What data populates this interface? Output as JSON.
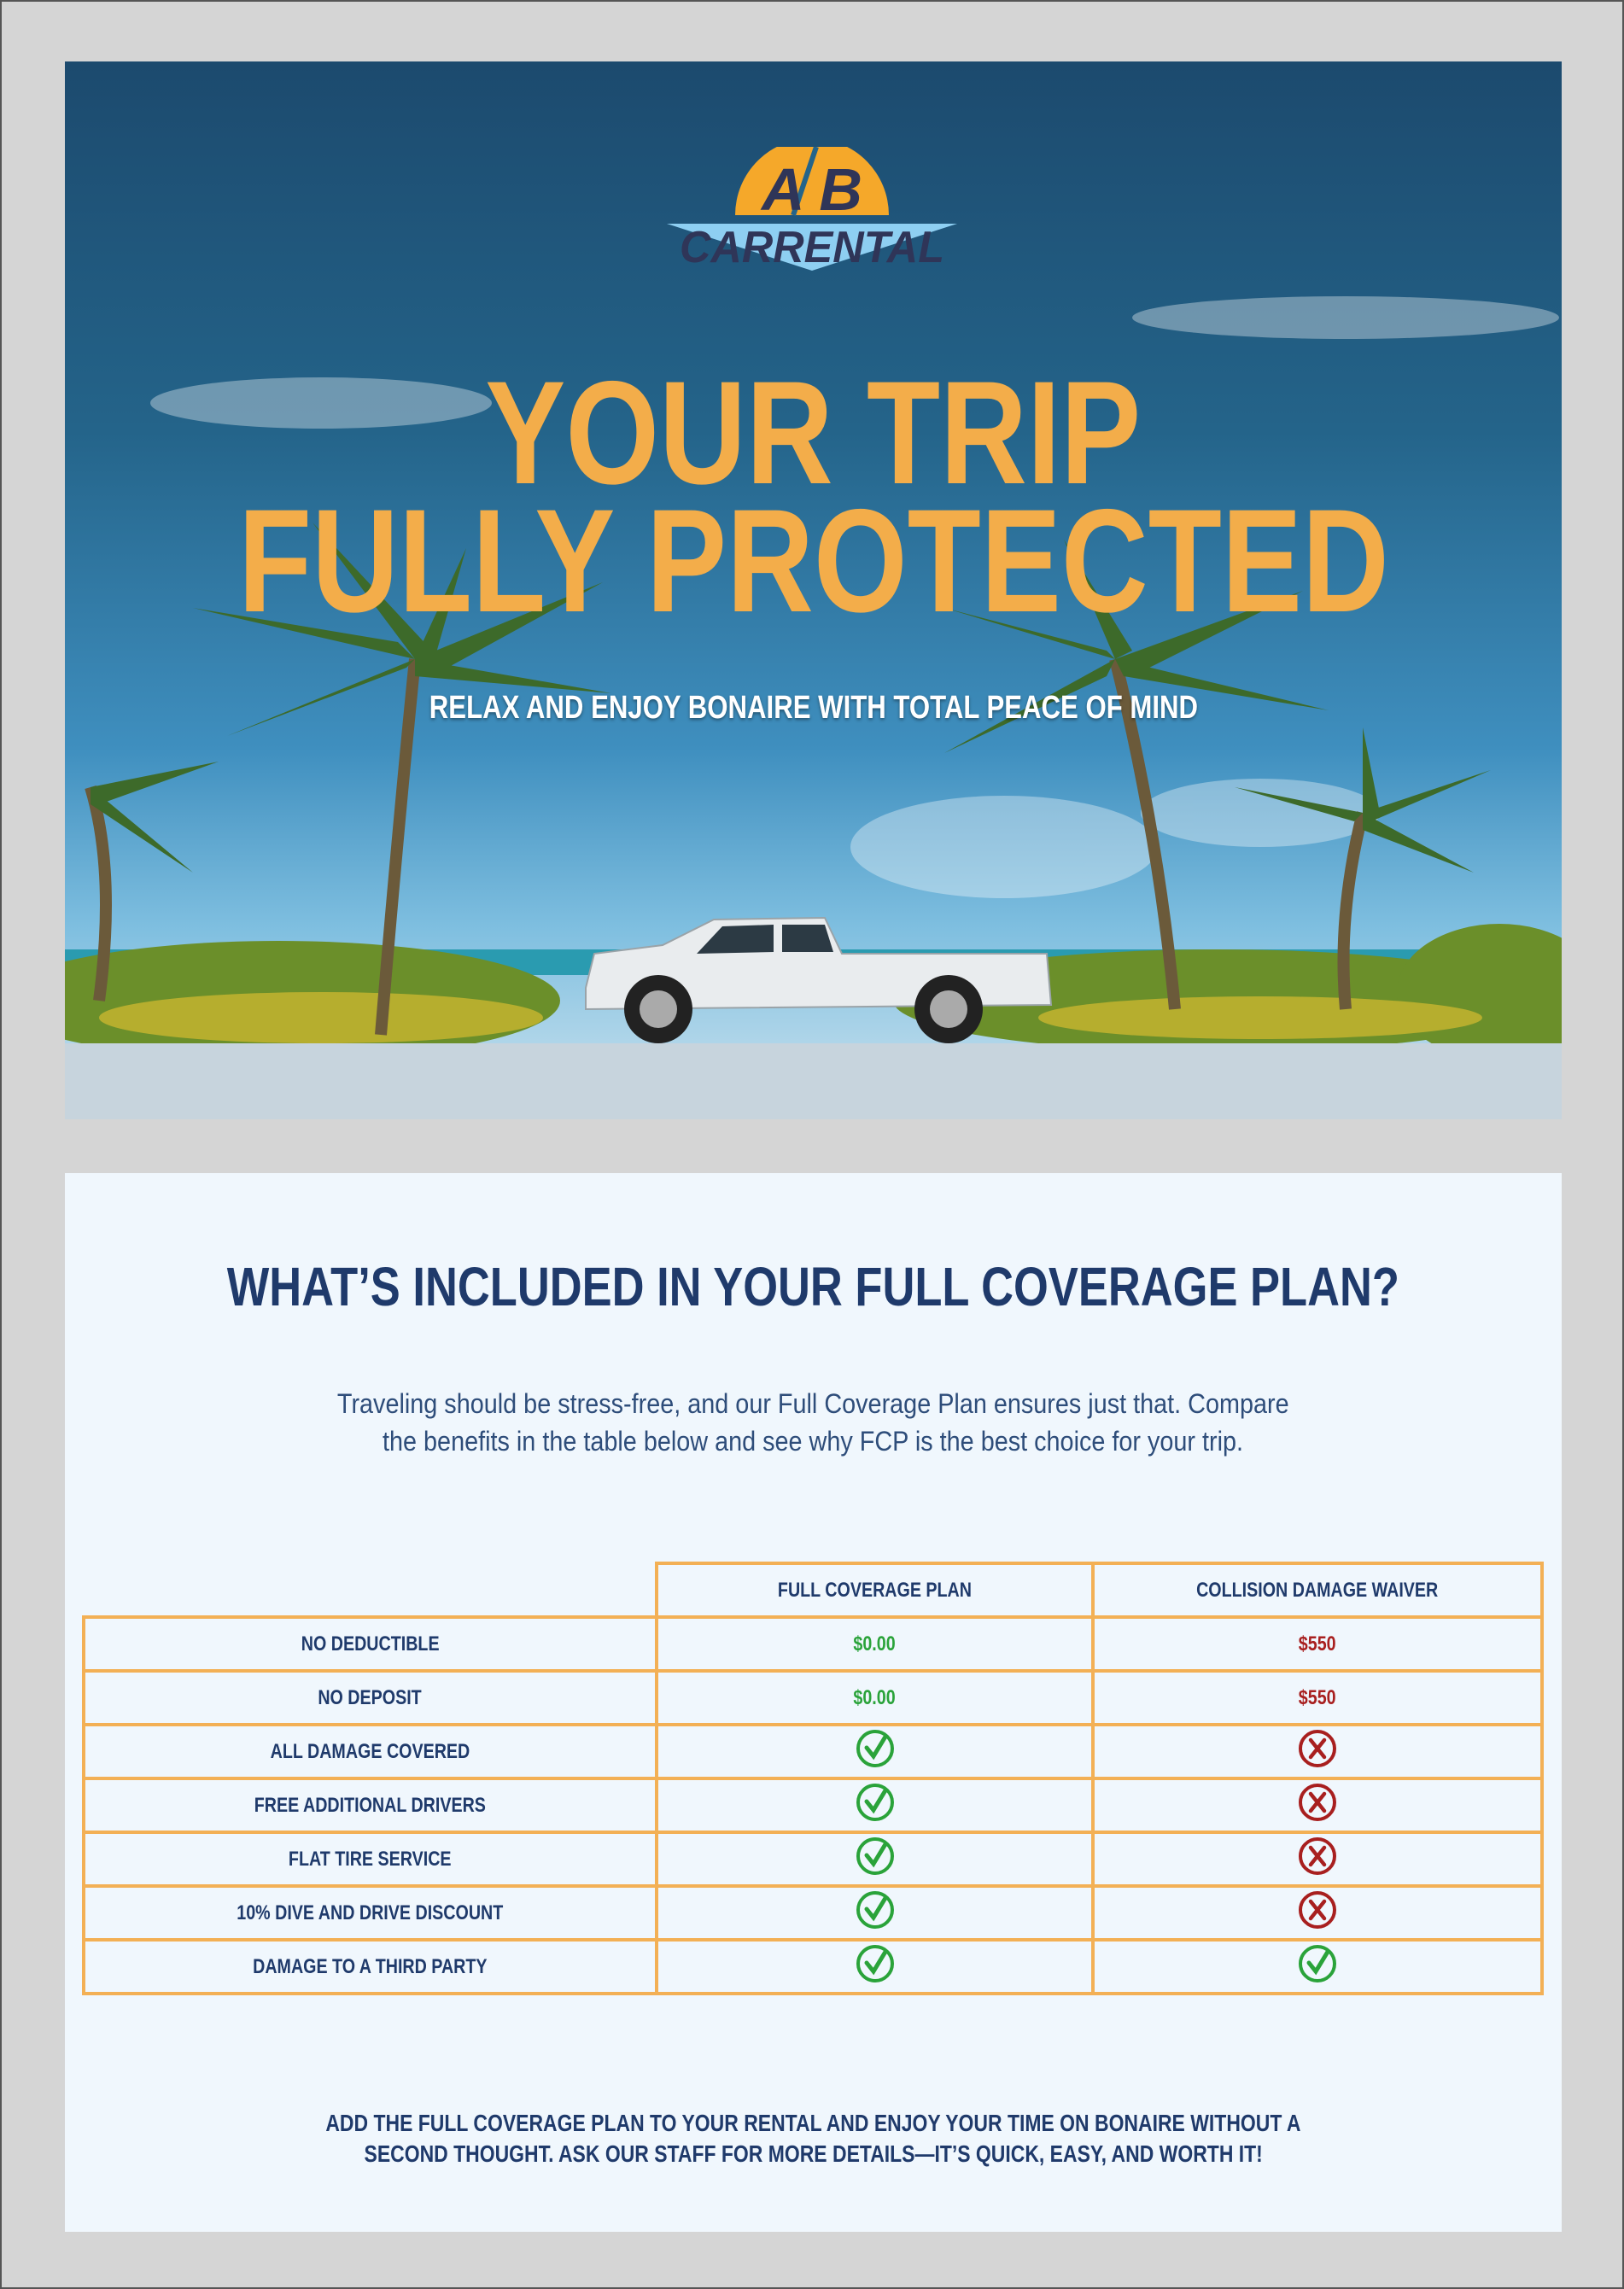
{
  "logo": {
    "text_top": "A/B",
    "text_bottom": "CARRENTAL"
  },
  "hero": {
    "title_line1": "YOUR TRIP",
    "title_line2": "FULLY PROTECTED",
    "subtitle": "RELAX AND ENJOY BONAIRE WITH TOTAL PEACE OF MIND"
  },
  "section": {
    "heading": "WHAT’S INCLUDED IN YOUR FULL COVERAGE PLAN?",
    "intro_line1": "Traveling should be stress-free, and our Full Coverage Plan ensures just that. Compare",
    "intro_line2": "the benefits in the table below and see why FCP is the best choice for your trip."
  },
  "table": {
    "columns": [
      "FULL COVERAGE PLAN",
      "COLLISION DAMAGE WAIVER"
    ],
    "rows": [
      {
        "label": "NO DEDUCTIBLE",
        "fcp": "$0.00",
        "cdw": "$550"
      },
      {
        "label": "NO DEPOSIT",
        "fcp": "$0.00",
        "cdw": "$550"
      },
      {
        "label": "ALL DAMAGE COVERED",
        "fcp": "check",
        "cdw": "cross"
      },
      {
        "label": "FREE ADDITIONAL DRIVERS",
        "fcp": "check",
        "cdw": "cross"
      },
      {
        "label": "FLAT TIRE SERVICE",
        "fcp": "check",
        "cdw": "cross"
      },
      {
        "label": "10% DIVE AND DRIVE DISCOUNT",
        "fcp": "check",
        "cdw": "cross"
      },
      {
        "label": "DAMAGE TO A THIRD PARTY",
        "fcp": "check",
        "cdw": "check"
      }
    ]
  },
  "footer": {
    "line1": "ADD THE FULL COVERAGE PLAN TO YOUR RENTAL AND ENJOY YOUR TIME ON BONAIRE WITHOUT A",
    "line2": "SECOND THOUGHT. ASK OUR STAFF FOR MORE DETAILS—IT’S QUICK, EASY, AND WORTH IT!"
  },
  "colors": {
    "accent": "#f3ad4a",
    "navy": "#1f3a6b",
    "green": "#2aa33a",
    "red": "#a81f1f"
  }
}
